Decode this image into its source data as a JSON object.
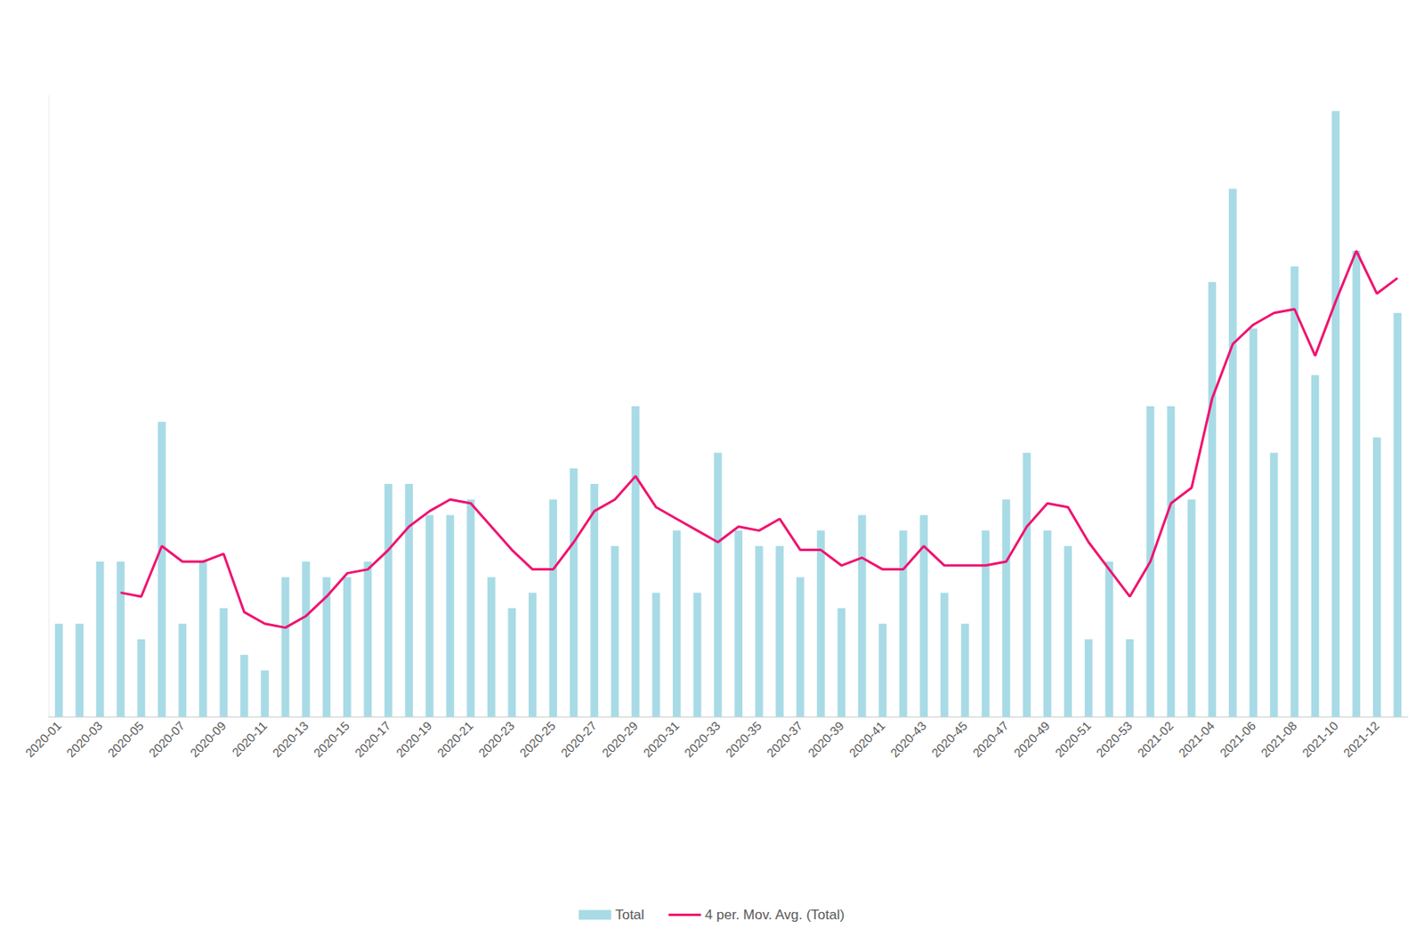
{
  "chart_data": {
    "type": "bar",
    "categories": [
      "2020-01",
      null,
      "2020-03",
      null,
      "2020-05",
      null,
      "2020-07",
      null,
      "2020-09",
      null,
      "2020-11",
      null,
      "2020-13",
      null,
      "2020-15",
      null,
      "2020-17",
      null,
      "2020-19",
      null,
      "2020-21",
      null,
      "2020-23",
      null,
      "2020-25",
      null,
      "2020-27",
      null,
      "2020-29",
      null,
      "2020-31",
      null,
      "2020-33",
      null,
      "2020-35",
      null,
      "2020-37",
      null,
      "2020-39",
      null,
      "2020-41",
      null,
      "2020-43",
      null,
      "2020-45",
      null,
      "2020-47",
      null,
      "2020-49",
      null,
      "2020-51",
      null,
      "2020-53",
      null,
      "2021-02",
      null,
      "2021-04",
      null,
      "2021-06",
      null,
      "2021-08",
      null,
      "2021-10",
      null,
      "2021-12",
      null
    ],
    "series": [
      {
        "name": "Total",
        "type": "bar",
        "color": "#a8dbe6",
        "values": [
          6,
          6,
          10,
          10,
          5,
          19,
          6,
          10,
          7,
          4,
          3,
          9,
          10,
          9,
          9,
          10,
          15,
          15,
          13,
          13,
          14,
          9,
          7,
          8,
          14,
          16,
          15,
          11,
          20,
          8,
          12,
          8,
          17,
          12,
          11,
          11,
          9,
          12,
          7,
          13,
          6,
          12,
          13,
          8,
          6,
          12,
          14,
          17,
          12,
          11,
          5,
          10,
          5,
          20,
          20,
          14,
          28,
          34,
          25,
          17,
          29,
          22,
          39,
          30,
          18,
          26
        ]
      },
      {
        "name": "4 per. Mov. Avg. (Total)",
        "type": "line",
        "color": "#f0136f",
        "values": [
          null,
          null,
          null,
          8,
          7.75,
          11,
          10,
          10,
          10.5,
          6.75,
          6,
          5.75,
          6.5,
          7.75,
          9.25,
          9.5,
          10.75,
          12.25,
          13.25,
          14,
          13.75,
          12.25,
          10.75,
          9.5,
          9.5,
          11.25,
          13.25,
          14,
          15.5,
          13.5,
          12.75,
          12,
          11.25,
          12.25,
          12,
          12.75,
          10.75,
          10.75,
          9.75,
          10.25,
          9.5,
          9.5,
          11,
          9.75,
          9.75,
          9.75,
          10,
          12.25,
          13.75,
          13.5,
          11.25,
          9.5,
          7.75,
          10,
          13.75,
          14.75,
          20.5,
          24,
          25.25,
          26,
          26.25,
          23.25,
          26.75,
          30,
          27.25,
          28.25
        ]
      }
    ],
    "ylim": [
      0,
      40
    ],
    "grid": false,
    "legend": "bottom",
    "tick_labels": "x"
  }
}
